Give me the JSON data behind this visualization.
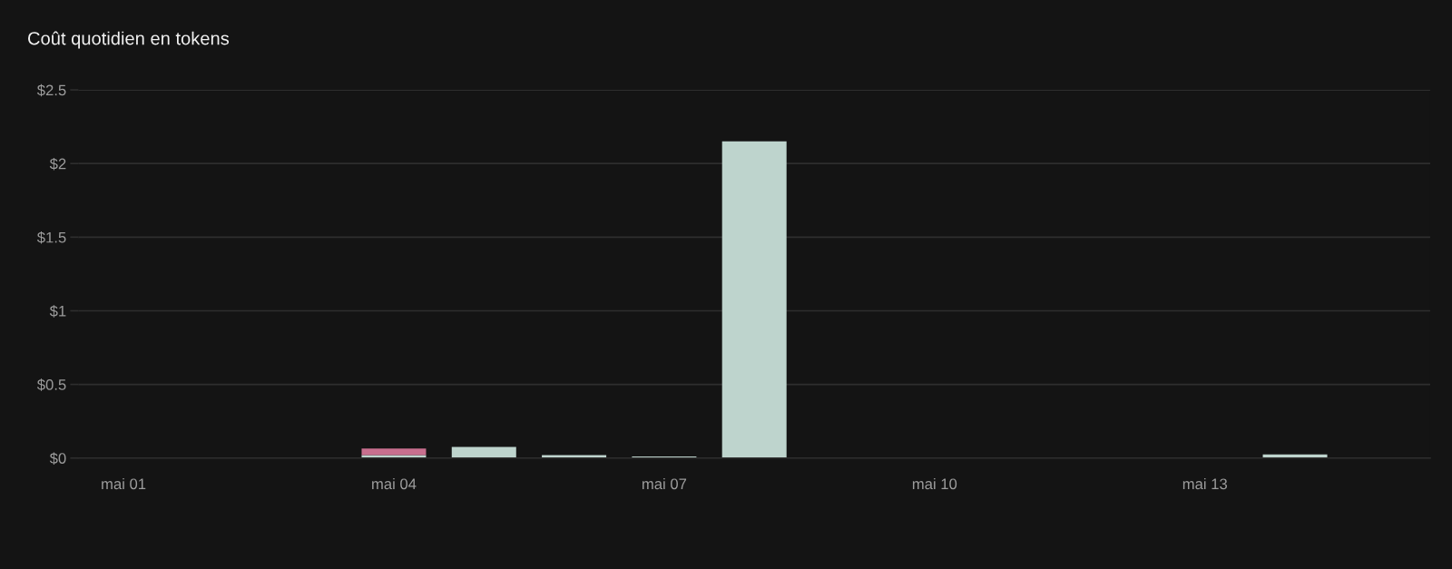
{
  "chart_data": {
    "type": "bar",
    "title": "Coût quotidien en tokens",
    "categories": [
      "mai 01",
      null,
      null,
      "mai 04",
      null,
      null,
      "mai 07",
      null,
      null,
      "mai 10",
      null,
      null,
      "mai 13",
      null,
      null
    ],
    "stacked": true,
    "series": [
      {
        "color": "#bed4cd",
        "values": [
          0,
          0,
          0,
          0.02,
          0.075,
          0.02,
          0.01,
          2.15,
          0,
          0,
          0,
          0,
          0,
          0.025,
          0
        ]
      },
      {
        "color": "#c86f8e",
        "values": [
          0,
          0,
          0,
          0.045,
          0,
          0,
          0,
          0,
          0,
          0,
          0,
          0,
          0,
          0,
          0
        ]
      }
    ],
    "ylim": [
      0,
      2.5
    ],
    "yticks": [
      {
        "value": 0,
        "label": "$0"
      },
      {
        "value": 0.5,
        "label": "$0.5"
      },
      {
        "value": 1,
        "label": "$1"
      },
      {
        "value": 1.5,
        "label": "$1.5"
      },
      {
        "value": 2,
        "label": "$2"
      },
      {
        "value": 2.5,
        "label": "$2.5"
      }
    ],
    "grid": "y"
  }
}
